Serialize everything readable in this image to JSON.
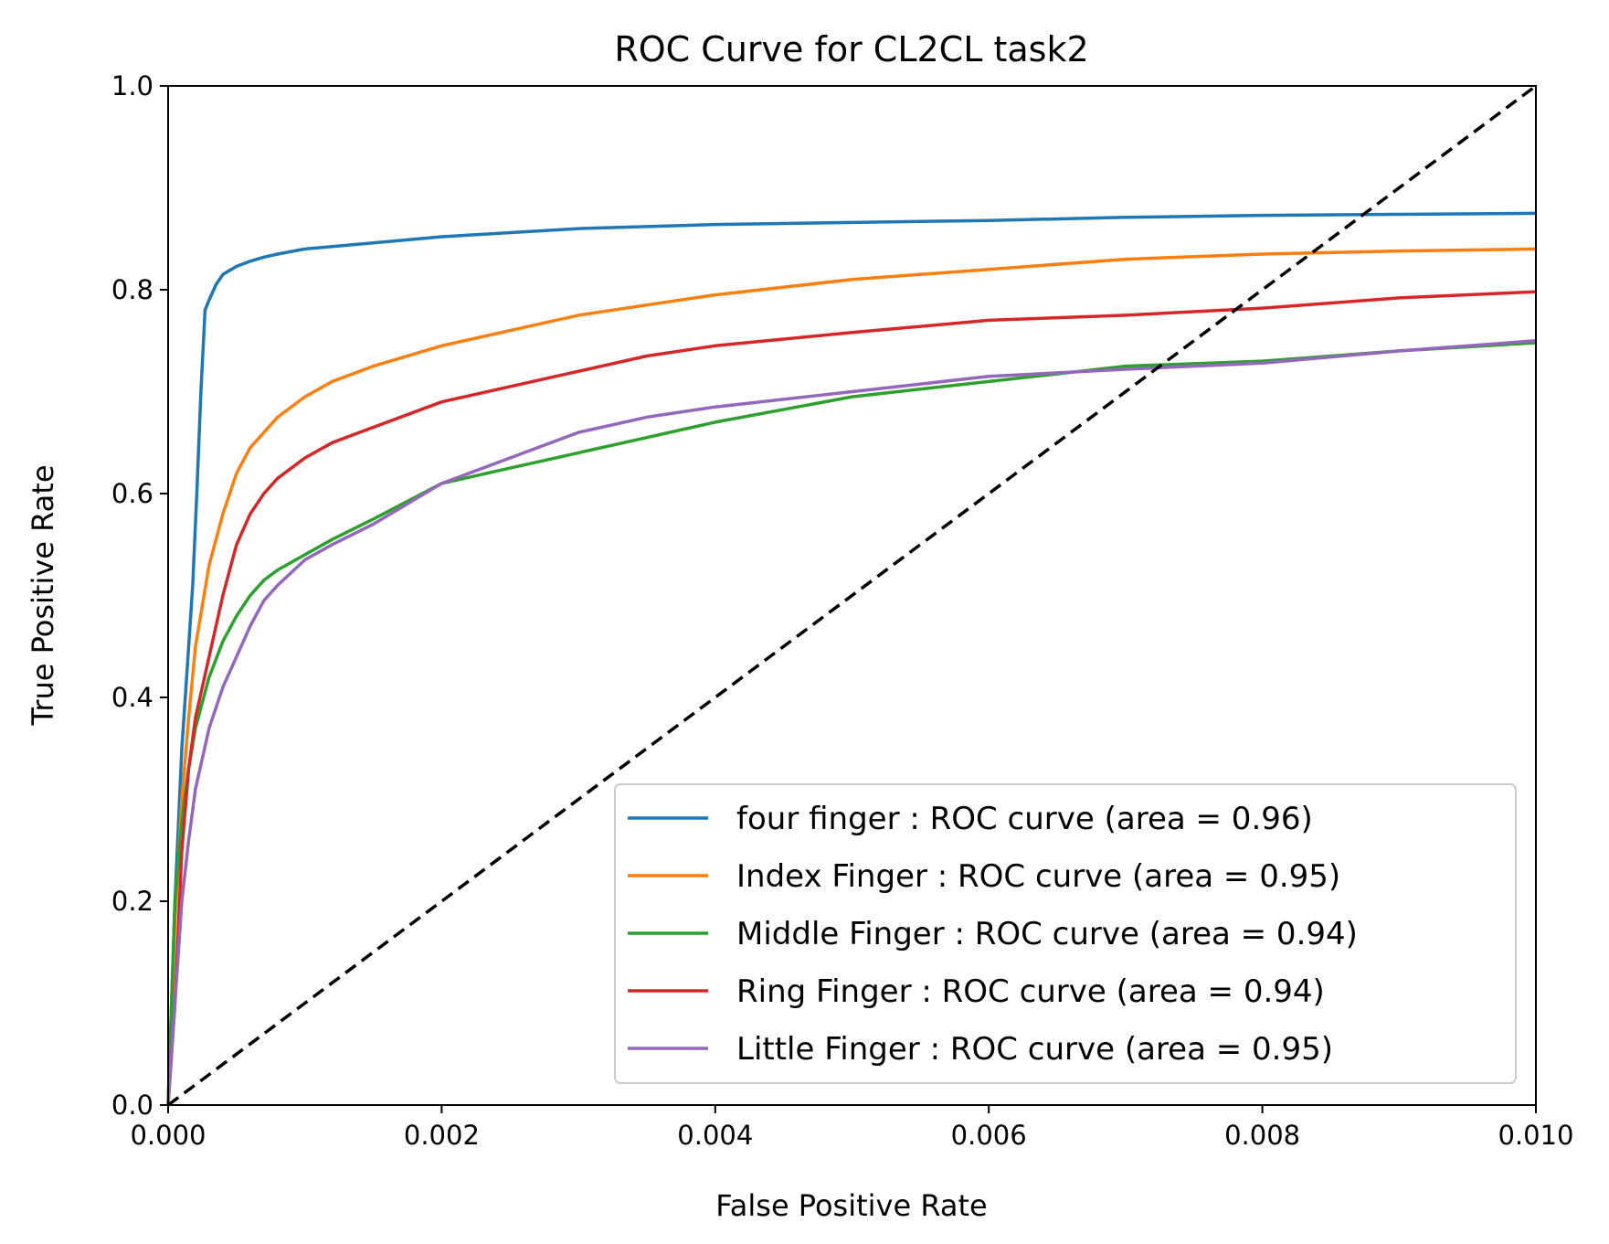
{
  "chart_data": {
    "type": "line",
    "title": "ROC Curve for CL2CL task2",
    "xlabel": "False Positive Rate",
    "ylabel": "True Positive Rate",
    "xlim": [
      0.0,
      0.01
    ],
    "ylim": [
      0.0,
      1.0
    ],
    "xticks": [
      "0.000",
      "0.002",
      "0.004",
      "0.006",
      "0.008",
      "0.010"
    ],
    "yticks": [
      "0.0",
      "0.2",
      "0.4",
      "0.6",
      "0.8",
      "1.0"
    ],
    "grid": false,
    "legend_position": "lower right",
    "series": [
      {
        "name": "four finger : ROC curve (area = 0.96)",
        "color": "#1f77b4",
        "x": [
          0,
          5e-05,
          0.0001,
          0.00015,
          0.00018,
          0.00021,
          0.00024,
          0.00027,
          0.0003,
          0.00035,
          0.0004,
          0.0005,
          0.0006,
          0.0007,
          0.0008,
          0.001,
          0.0015,
          0.002,
          0.003,
          0.004,
          0.005,
          0.006,
          0.007,
          0.008,
          0.009,
          0.01
        ],
        "y": [
          0,
          0.2,
          0.35,
          0.45,
          0.51,
          0.6,
          0.7,
          0.78,
          0.79,
          0.805,
          0.815,
          0.823,
          0.828,
          0.832,
          0.835,
          0.84,
          0.846,
          0.852,
          0.86,
          0.864,
          0.866,
          0.868,
          0.871,
          0.873,
          0.874,
          0.875
        ]
      },
      {
        "name": "Index Finger : ROC curve (area = 0.95)",
        "color": "#ff7f0e",
        "x": [
          0,
          5e-05,
          0.0001,
          0.00015,
          0.0002,
          0.0003,
          0.0004,
          0.0005,
          0.0006,
          0.0007,
          0.0008,
          0.001,
          0.0012,
          0.0015,
          0.002,
          0.0025,
          0.003,
          0.0035,
          0.004,
          0.005,
          0.006,
          0.007,
          0.008,
          0.009,
          0.01
        ],
        "y": [
          0,
          0.18,
          0.3,
          0.38,
          0.45,
          0.53,
          0.58,
          0.62,
          0.645,
          0.66,
          0.675,
          0.695,
          0.71,
          0.725,
          0.745,
          0.76,
          0.775,
          0.785,
          0.795,
          0.81,
          0.82,
          0.83,
          0.835,
          0.838,
          0.84
        ]
      },
      {
        "name": "Middle Finger : ROC curve (area = 0.94)",
        "color": "#2ca02c",
        "x": [
          0,
          5e-05,
          0.0001,
          0.00015,
          0.0002,
          0.0003,
          0.0004,
          0.0005,
          0.0006,
          0.0007,
          0.0008,
          0.001,
          0.0012,
          0.0015,
          0.002,
          0.0025,
          0.003,
          0.0035,
          0.004,
          0.005,
          0.006,
          0.007,
          0.008,
          0.009,
          0.01
        ],
        "y": [
          0,
          0.2,
          0.28,
          0.33,
          0.37,
          0.42,
          0.455,
          0.48,
          0.5,
          0.515,
          0.525,
          0.54,
          0.555,
          0.575,
          0.61,
          0.625,
          0.64,
          0.655,
          0.67,
          0.695,
          0.71,
          0.725,
          0.73,
          0.74,
          0.748
        ]
      },
      {
        "name": "Ring Finger : ROC curve (area = 0.94)",
        "color": "#d62728",
        "x": [
          0,
          5e-05,
          0.0001,
          0.00015,
          0.0002,
          0.0003,
          0.0004,
          0.0005,
          0.0006,
          0.0007,
          0.0008,
          0.001,
          0.0012,
          0.0015,
          0.002,
          0.0025,
          0.003,
          0.0035,
          0.004,
          0.005,
          0.006,
          0.007,
          0.008,
          0.009,
          0.01
        ],
        "y": [
          0,
          0.1,
          0.25,
          0.33,
          0.38,
          0.44,
          0.5,
          0.55,
          0.58,
          0.6,
          0.615,
          0.635,
          0.65,
          0.665,
          0.69,
          0.705,
          0.72,
          0.735,
          0.745,
          0.758,
          0.77,
          0.775,
          0.782,
          0.792,
          0.798
        ]
      },
      {
        "name": "Little Finger : ROC curve (area = 0.95)",
        "color": "#9467bd",
        "x": [
          0,
          5e-05,
          0.0001,
          0.00015,
          0.0002,
          0.0003,
          0.0004,
          0.0005,
          0.0006,
          0.0007,
          0.0008,
          0.001,
          0.0012,
          0.0015,
          0.002,
          0.0025,
          0.003,
          0.0035,
          0.004,
          0.005,
          0.006,
          0.007,
          0.008,
          0.009,
          0.01
        ],
        "y": [
          0,
          0.1,
          0.2,
          0.26,
          0.31,
          0.37,
          0.41,
          0.44,
          0.47,
          0.495,
          0.51,
          0.535,
          0.55,
          0.57,
          0.61,
          0.635,
          0.66,
          0.675,
          0.685,
          0.7,
          0.715,
          0.722,
          0.728,
          0.74,
          0.75
        ]
      }
    ],
    "reference_line": {
      "x": [
        0.0,
        0.01
      ],
      "y": [
        0.0,
        1.0
      ],
      "color": "#000000",
      "style": "dashed"
    }
  }
}
